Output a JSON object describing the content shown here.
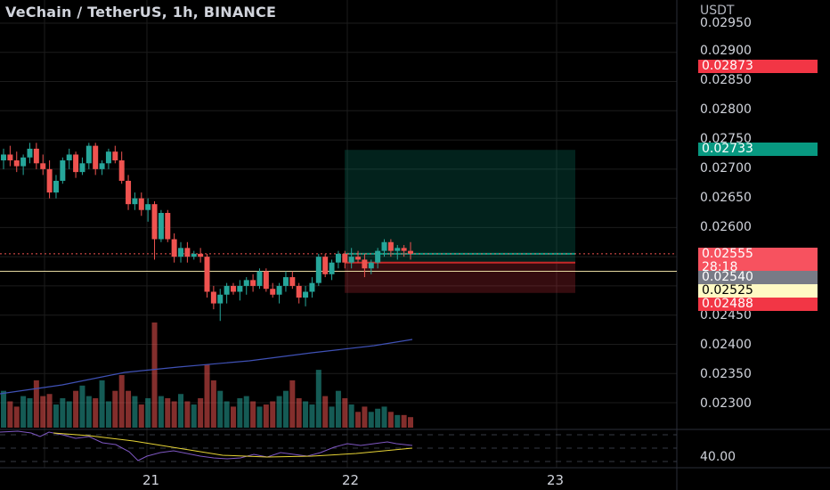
{
  "header": {
    "title": "VeChain / TetherUS, 1h, BINANCE",
    "unit": "USDT"
  },
  "price_axis": {
    "labels": [
      "0.02950",
      "0.02900",
      "0.02850",
      "0.02800",
      "0.02750",
      "0.02700",
      "0.02650",
      "0.02600",
      "0.02450",
      "0.02400",
      "0.02350",
      "0.02300"
    ],
    "rsi_label": "40.00"
  },
  "badges": {
    "target": {
      "text": "0.02873",
      "color": "#f23645"
    },
    "take_profit": {
      "text": "0.02733",
      "color": "#089981"
    },
    "last_price": {
      "text": "0.02555",
      "color": "#f7525f"
    },
    "countdown": {
      "text": "28:18",
      "color": "#f7525f"
    },
    "entry": {
      "text": "0.02540",
      "color": "#787b86"
    },
    "horizontal_line": {
      "text": "0.02525",
      "color": "#fff9c4"
    },
    "stop_loss": {
      "text": "0.02488",
      "color": "#f23645"
    }
  },
  "time_axis": {
    "labels": [
      "21",
      "22",
      "23"
    ]
  },
  "colors": {
    "up": "#26a69a",
    "down": "#ef5350",
    "ma": "#3f51b5",
    "rsi": "#7e57c2",
    "rsi_ma": "#e6d335",
    "hline": "#e6d9a0"
  },
  "chart_data": {
    "type": "candlestick",
    "symbol": "VeChain / TetherUS",
    "interval": "1h",
    "exchange": "BINANCE",
    "x_dates": [
      "21",
      "22",
      "23"
    ],
    "ylim": [
      0.0228,
      0.02955
    ],
    "candles": [
      [
        0.02715,
        0.02735,
        0.027,
        0.02725
      ],
      [
        0.02725,
        0.0274,
        0.02705,
        0.02715
      ],
      [
        0.02715,
        0.0273,
        0.02695,
        0.02705
      ],
      [
        0.02705,
        0.02725,
        0.0269,
        0.0272
      ],
      [
        0.0272,
        0.02745,
        0.0271,
        0.02735
      ],
      [
        0.02735,
        0.02745,
        0.027,
        0.0271
      ],
      [
        0.0271,
        0.02725,
        0.0269,
        0.027
      ],
      [
        0.027,
        0.02715,
        0.0265,
        0.0266
      ],
      [
        0.0266,
        0.0269,
        0.0265,
        0.0268
      ],
      [
        0.0268,
        0.0272,
        0.02675,
        0.02715
      ],
      [
        0.02715,
        0.02735,
        0.027,
        0.02725
      ],
      [
        0.02725,
        0.0273,
        0.02685,
        0.02695
      ],
      [
        0.02695,
        0.0272,
        0.0269,
        0.0271
      ],
      [
        0.0271,
        0.02745,
        0.027,
        0.0274
      ],
      [
        0.0274,
        0.02745,
        0.0269,
        0.027
      ],
      [
        0.027,
        0.02715,
        0.0269,
        0.0271
      ],
      [
        0.0271,
        0.02735,
        0.027,
        0.0273
      ],
      [
        0.0273,
        0.0274,
        0.0271,
        0.02715
      ],
      [
        0.02715,
        0.0273,
        0.02675,
        0.0268
      ],
      [
        0.0268,
        0.0269,
        0.0263,
        0.0264
      ],
      [
        0.0264,
        0.0266,
        0.0263,
        0.0265
      ],
      [
        0.0265,
        0.0266,
        0.0262,
        0.0263
      ],
      [
        0.0263,
        0.0265,
        0.0261,
        0.0264
      ],
      [
        0.0264,
        0.02645,
        0.02545,
        0.0258
      ],
      [
        0.0258,
        0.0263,
        0.02575,
        0.02625
      ],
      [
        0.02625,
        0.0263,
        0.02575,
        0.0258
      ],
      [
        0.0258,
        0.0259,
        0.0254,
        0.0255
      ],
      [
        0.0255,
        0.02575,
        0.0254,
        0.02565
      ],
      [
        0.02565,
        0.02575,
        0.0254,
        0.0255
      ],
      [
        0.0255,
        0.0256,
        0.02545,
        0.02555
      ],
      [
        0.02555,
        0.02565,
        0.0254,
        0.0255
      ],
      [
        0.0255,
        0.02555,
        0.0248,
        0.0249
      ],
      [
        0.0249,
        0.025,
        0.0246,
        0.0247
      ],
      [
        0.0247,
        0.02495,
        0.0244,
        0.02485
      ],
      [
        0.02485,
        0.02505,
        0.0247,
        0.025
      ],
      [
        0.025,
        0.02505,
        0.02485,
        0.0249
      ],
      [
        0.0249,
        0.0251,
        0.02475,
        0.025
      ],
      [
        0.025,
        0.02515,
        0.02485,
        0.0251
      ],
      [
        0.0251,
        0.0252,
        0.0249,
        0.025
      ],
      [
        0.025,
        0.0253,
        0.02495,
        0.02525
      ],
      [
        0.02525,
        0.0253,
        0.0249,
        0.02495
      ],
      [
        0.02495,
        0.02505,
        0.0248,
        0.02485
      ],
      [
        0.02485,
        0.02505,
        0.0247,
        0.025
      ],
      [
        0.025,
        0.02525,
        0.0249,
        0.02515
      ],
      [
        0.02515,
        0.02525,
        0.02495,
        0.025
      ],
      [
        0.025,
        0.02505,
        0.0247,
        0.0248
      ],
      [
        0.0248,
        0.025,
        0.02465,
        0.0249
      ],
      [
        0.0249,
        0.02515,
        0.0248,
        0.02505
      ],
      [
        0.02505,
        0.02555,
        0.025,
        0.0255
      ],
      [
        0.0255,
        0.02555,
        0.02515,
        0.0252
      ],
      [
        0.0252,
        0.02545,
        0.0251,
        0.0254
      ],
      [
        0.0254,
        0.0256,
        0.0253,
        0.02555
      ],
      [
        0.02555,
        0.0256,
        0.0253,
        0.0254
      ],
      [
        0.0254,
        0.02565,
        0.0253,
        0.0255
      ],
      [
        0.0255,
        0.0256,
        0.0254,
        0.02545
      ],
      [
        0.02545,
        0.02555,
        0.02515,
        0.0253
      ],
      [
        0.0253,
        0.02545,
        0.0252,
        0.0254
      ],
      [
        0.0254,
        0.02565,
        0.0253,
        0.0256
      ],
      [
        0.0256,
        0.0258,
        0.0255,
        0.02575
      ],
      [
        0.02575,
        0.0258,
        0.0255,
        0.0256
      ],
      [
        0.0256,
        0.0257,
        0.02545,
        0.02565
      ],
      [
        0.02565,
        0.0257,
        0.0255,
        0.0256
      ],
      [
        0.0256,
        0.02575,
        0.02545,
        0.02555
      ]
    ],
    "volume_relative": [
      0.35,
      0.25,
      0.2,
      0.3,
      0.28,
      0.45,
      0.3,
      0.32,
      0.22,
      0.28,
      0.25,
      0.35,
      0.4,
      0.3,
      0.28,
      0.45,
      0.25,
      0.35,
      0.5,
      0.35,
      0.3,
      0.22,
      0.28,
      1.0,
      0.3,
      0.28,
      0.25,
      0.32,
      0.25,
      0.22,
      0.28,
      0.6,
      0.45,
      0.35,
      0.25,
      0.2,
      0.28,
      0.3,
      0.25,
      0.2,
      0.22,
      0.25,
      0.3,
      0.35,
      0.45,
      0.28,
      0.25,
      0.22,
      0.55,
      0.3,
      0.2,
      0.35,
      0.28,
      0.22,
      0.15,
      0.2,
      0.15,
      0.18,
      0.2,
      0.15,
      0.12,
      0.12,
      0.1
    ],
    "ma_on_volume_relative": [
      0.25,
      0.4,
      0.55
    ],
    "rsi_level_label": 40
  }
}
